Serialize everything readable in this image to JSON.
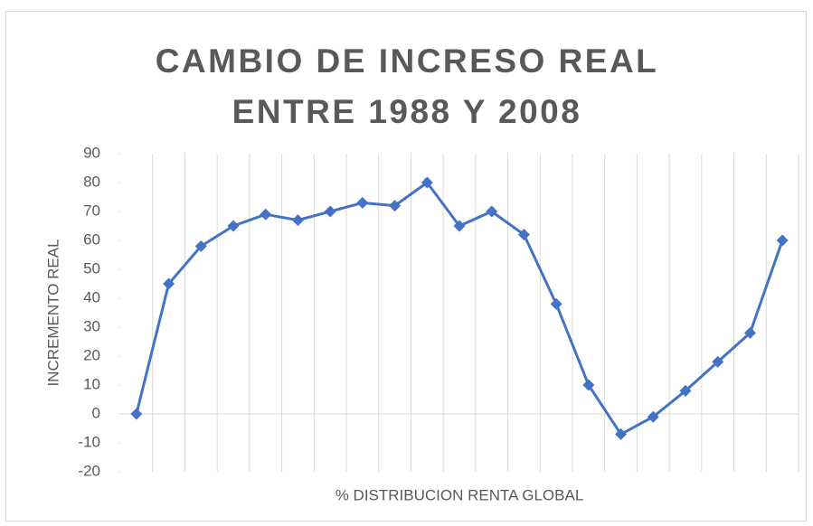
{
  "chart_data": {
    "type": "line",
    "title": "CAMBIO DE INCRESO REAL ENTRE 1988 Y 2008",
    "x_label": "% DISTRIBUCION RENTA GLOBAL",
    "y_label": "INCREMENTO REAL",
    "categories": [
      null,
      null,
      null,
      null,
      null,
      null,
      null,
      null,
      null,
      null,
      null,
      null,
      null,
      null,
      null,
      null,
      null,
      null,
      null,
      null,
      null
    ],
    "series": [
      {
        "name": "INCREMENTO REAL",
        "color": "#4472c4",
        "values": [
          0,
          45,
          58,
          65,
          69,
          67,
          70,
          73,
          72,
          80,
          65,
          70,
          62,
          38,
          10,
          -7,
          -1,
          8,
          18,
          28,
          60
        ]
      }
    ],
    "ylim": [
      -20,
      90
    ],
    "yticks": [
      -20,
      -10,
      0,
      10,
      20,
      30,
      40,
      50,
      60,
      70,
      80,
      90
    ],
    "grid": true
  }
}
